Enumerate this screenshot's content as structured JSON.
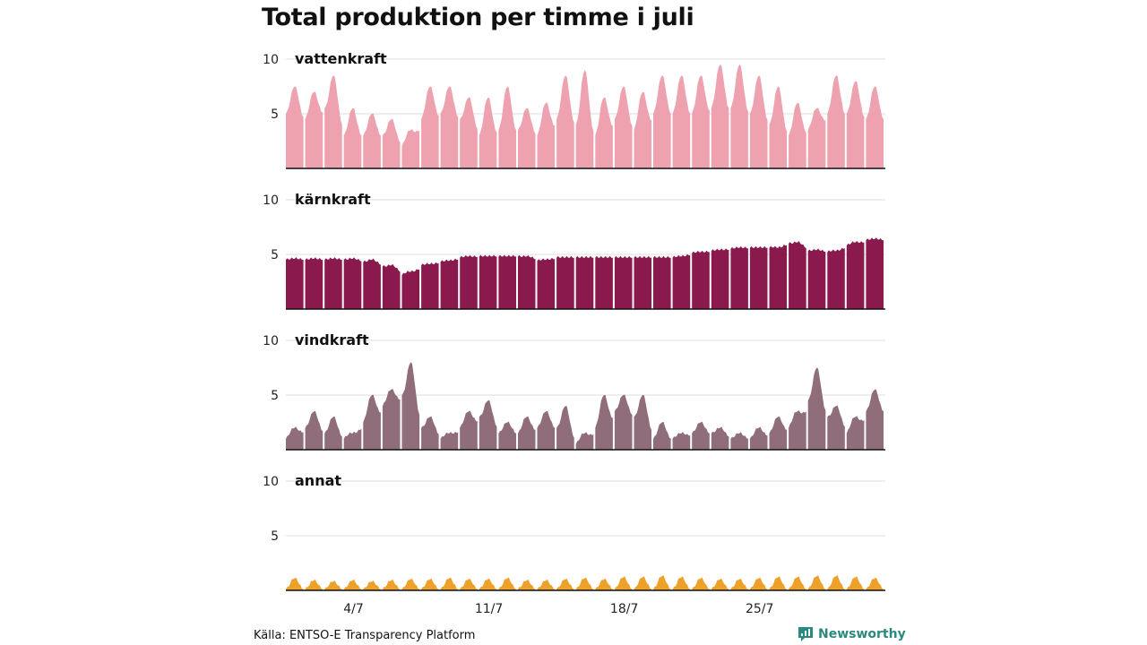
{
  "title": "Total produktion per timme i juli",
  "source": "Källa: ENTSO-E Transparency Platform",
  "brand": "Newsworthy",
  "chart_data": {
    "type": "area",
    "title": "Total produktion per timme i juli",
    "x_unit": "day of July (daily values, hourly detail approximated)",
    "ylim": [
      0,
      10
    ],
    "yticks": [
      5,
      10
    ],
    "grid": true,
    "x_tick_labels": [
      {
        "day": 4,
        "label": "4/7"
      },
      {
        "day": 11,
        "label": "11/7"
      },
      {
        "day": 18,
        "label": "18/7"
      },
      {
        "day": 25,
        "label": "25/7"
      }
    ],
    "series": [
      {
        "name": "vattenkraft",
        "color": "#eea1ae",
        "daily": [
          {
            "day": 1,
            "lo": 5.0,
            "hi": 7.5
          },
          {
            "day": 2,
            "lo": 4.5,
            "hi": 7.0
          },
          {
            "day": 3,
            "lo": 5.5,
            "hi": 8.5
          },
          {
            "day": 4,
            "lo": 3.0,
            "hi": 5.5
          },
          {
            "day": 5,
            "lo": 3.0,
            "hi": 5.0
          },
          {
            "day": 6,
            "lo": 3.0,
            "hi": 4.5
          },
          {
            "day": 7,
            "lo": 2.0,
            "hi": 3.5
          },
          {
            "day": 8,
            "lo": 4.5,
            "hi": 7.5
          },
          {
            "day": 9,
            "lo": 5.0,
            "hi": 7.5
          },
          {
            "day": 10,
            "lo": 4.5,
            "hi": 6.5
          },
          {
            "day": 11,
            "lo": 3.0,
            "hi": 6.5
          },
          {
            "day": 12,
            "lo": 3.5,
            "hi": 7.5
          },
          {
            "day": 13,
            "lo": 3.5,
            "hi": 5.5
          },
          {
            "day": 14,
            "lo": 3.0,
            "hi": 6.0
          },
          {
            "day": 15,
            "lo": 4.5,
            "hi": 8.5
          },
          {
            "day": 16,
            "lo": 4.0,
            "hi": 9.0
          },
          {
            "day": 17,
            "lo": 3.0,
            "hi": 6.5
          },
          {
            "day": 18,
            "lo": 4.5,
            "hi": 7.5
          },
          {
            "day": 19,
            "lo": 3.5,
            "hi": 7.0
          },
          {
            "day": 20,
            "lo": 5.0,
            "hi": 8.5
          },
          {
            "day": 21,
            "lo": 5.0,
            "hi": 8.5
          },
          {
            "day": 22,
            "lo": 5.0,
            "hi": 8.5
          },
          {
            "day": 23,
            "lo": 5.5,
            "hi": 9.5
          },
          {
            "day": 24,
            "lo": 5.5,
            "hi": 9.5
          },
          {
            "day": 25,
            "lo": 5.0,
            "hi": 8.5
          },
          {
            "day": 26,
            "lo": 4.0,
            "hi": 7.5
          },
          {
            "day": 27,
            "lo": 3.0,
            "hi": 6.0
          },
          {
            "day": 28,
            "lo": 3.5,
            "hi": 5.5
          },
          {
            "day": 29,
            "lo": 5.0,
            "hi": 8.5
          },
          {
            "day": 30,
            "lo": 5.0,
            "hi": 8.0
          },
          {
            "day": 31,
            "lo": 4.5,
            "hi": 7.5
          }
        ]
      },
      {
        "name": "kärnkraft",
        "color": "#8a1a4e",
        "daily": [
          {
            "day": 1,
            "lo": 4.5,
            "hi": 4.6
          },
          {
            "day": 2,
            "lo": 4.5,
            "hi": 4.6
          },
          {
            "day": 3,
            "lo": 4.5,
            "hi": 4.6
          },
          {
            "day": 4,
            "lo": 4.5,
            "hi": 4.6
          },
          {
            "day": 5,
            "lo": 4.3,
            "hi": 4.5
          },
          {
            "day": 6,
            "lo": 3.9,
            "hi": 4.0
          },
          {
            "day": 7,
            "lo": 3.1,
            "hi": 3.4
          },
          {
            "day": 8,
            "lo": 4.0,
            "hi": 4.1
          },
          {
            "day": 9,
            "lo": 4.3,
            "hi": 4.4
          },
          {
            "day": 10,
            "lo": 4.7,
            "hi": 4.8
          },
          {
            "day": 11,
            "lo": 4.8,
            "hi": 4.8
          },
          {
            "day": 12,
            "lo": 4.8,
            "hi": 4.8
          },
          {
            "day": 13,
            "lo": 4.8,
            "hi": 4.8
          },
          {
            "day": 14,
            "lo": 4.4,
            "hi": 4.5
          },
          {
            "day": 15,
            "lo": 4.7,
            "hi": 4.7
          },
          {
            "day": 16,
            "lo": 4.7,
            "hi": 4.7
          },
          {
            "day": 17,
            "lo": 4.7,
            "hi": 4.7
          },
          {
            "day": 18,
            "lo": 4.7,
            "hi": 4.7
          },
          {
            "day": 19,
            "lo": 4.7,
            "hi": 4.7
          },
          {
            "day": 20,
            "lo": 4.7,
            "hi": 4.7
          },
          {
            "day": 21,
            "lo": 4.7,
            "hi": 4.8
          },
          {
            "day": 22,
            "lo": 5.1,
            "hi": 5.2
          },
          {
            "day": 23,
            "lo": 5.3,
            "hi": 5.4
          },
          {
            "day": 24,
            "lo": 5.5,
            "hi": 5.6
          },
          {
            "day": 25,
            "lo": 5.6,
            "hi": 5.6
          },
          {
            "day": 26,
            "lo": 5.6,
            "hi": 5.6
          },
          {
            "day": 27,
            "lo": 6.0,
            "hi": 6.1
          },
          {
            "day": 28,
            "lo": 5.3,
            "hi": 5.4
          },
          {
            "day": 29,
            "lo": 5.2,
            "hi": 5.3
          },
          {
            "day": 30,
            "lo": 5.8,
            "hi": 6.1
          },
          {
            "day": 31,
            "lo": 6.3,
            "hi": 6.4
          }
        ]
      },
      {
        "name": "vindkraft",
        "color": "#8f6d7a",
        "daily": [
          {
            "day": 1,
            "lo": 1.0,
            "hi": 2.0
          },
          {
            "day": 2,
            "lo": 2.0,
            "hi": 3.5
          },
          {
            "day": 3,
            "lo": 1.5,
            "hi": 3.0
          },
          {
            "day": 4,
            "lo": 1.0,
            "hi": 1.5
          },
          {
            "day": 5,
            "lo": 2.5,
            "hi": 5.0
          },
          {
            "day": 6,
            "lo": 4.0,
            "hi": 5.5
          },
          {
            "day": 7,
            "lo": 5.0,
            "hi": 8.0
          },
          {
            "day": 8,
            "lo": 2.0,
            "hi": 3.0
          },
          {
            "day": 9,
            "lo": 1.0,
            "hi": 1.5
          },
          {
            "day": 10,
            "lo": 2.0,
            "hi": 3.5
          },
          {
            "day": 11,
            "lo": 3.0,
            "hi": 4.5
          },
          {
            "day": 12,
            "lo": 1.5,
            "hi": 2.5
          },
          {
            "day": 13,
            "lo": 1.5,
            "hi": 3.0
          },
          {
            "day": 14,
            "lo": 2.0,
            "hi": 3.5
          },
          {
            "day": 15,
            "lo": 2.0,
            "hi": 4.0
          },
          {
            "day": 16,
            "lo": 0.5,
            "hi": 1.5
          },
          {
            "day": 17,
            "lo": 2.0,
            "hi": 5.0
          },
          {
            "day": 18,
            "lo": 3.5,
            "hi": 5.0
          },
          {
            "day": 19,
            "lo": 3.0,
            "hi": 5.0
          },
          {
            "day": 20,
            "lo": 1.0,
            "hi": 2.5
          },
          {
            "day": 21,
            "lo": 1.0,
            "hi": 1.5
          },
          {
            "day": 22,
            "lo": 1.5,
            "hi": 2.5
          },
          {
            "day": 23,
            "lo": 1.5,
            "hi": 2.0
          },
          {
            "day": 24,
            "lo": 1.0,
            "hi": 1.5
          },
          {
            "day": 25,
            "lo": 1.0,
            "hi": 2.0
          },
          {
            "day": 26,
            "lo": 1.5,
            "hi": 3.0
          },
          {
            "day": 27,
            "lo": 2.0,
            "hi": 3.5
          },
          {
            "day": 28,
            "lo": 4.5,
            "hi": 7.5
          },
          {
            "day": 29,
            "lo": 3.0,
            "hi": 4.0
          },
          {
            "day": 30,
            "lo": 1.5,
            "hi": 3.0
          },
          {
            "day": 31,
            "lo": 3.5,
            "hi": 5.5
          }
        ]
      },
      {
        "name": "annat",
        "color": "#eea12a",
        "daily": [
          {
            "day": 1,
            "lo": 0.1,
            "hi": 1.1
          },
          {
            "day": 2,
            "lo": 0.1,
            "hi": 0.9
          },
          {
            "day": 3,
            "lo": 0.1,
            "hi": 0.8
          },
          {
            "day": 4,
            "lo": 0.1,
            "hi": 0.9
          },
          {
            "day": 5,
            "lo": 0.1,
            "hi": 0.8
          },
          {
            "day": 6,
            "lo": 0.1,
            "hi": 0.9
          },
          {
            "day": 7,
            "lo": 0.1,
            "hi": 1.0
          },
          {
            "day": 8,
            "lo": 0.1,
            "hi": 1.0
          },
          {
            "day": 9,
            "lo": 0.1,
            "hi": 1.1
          },
          {
            "day": 10,
            "lo": 0.1,
            "hi": 1.0
          },
          {
            "day": 11,
            "lo": 0.1,
            "hi": 1.0
          },
          {
            "day": 12,
            "lo": 0.1,
            "hi": 1.1
          },
          {
            "day": 13,
            "lo": 0.1,
            "hi": 0.9
          },
          {
            "day": 14,
            "lo": 0.1,
            "hi": 0.9
          },
          {
            "day": 15,
            "lo": 0.1,
            "hi": 1.0
          },
          {
            "day": 16,
            "lo": 0.1,
            "hi": 1.1
          },
          {
            "day": 17,
            "lo": 0.1,
            "hi": 1.0
          },
          {
            "day": 18,
            "lo": 0.1,
            "hi": 1.2
          },
          {
            "day": 19,
            "lo": 0.1,
            "hi": 1.2
          },
          {
            "day": 20,
            "lo": 0.1,
            "hi": 1.3
          },
          {
            "day": 21,
            "lo": 0.1,
            "hi": 1.2
          },
          {
            "day": 22,
            "lo": 0.1,
            "hi": 1.1
          },
          {
            "day": 23,
            "lo": 0.1,
            "hi": 1.0
          },
          {
            "day": 24,
            "lo": 0.1,
            "hi": 1.0
          },
          {
            "day": 25,
            "lo": 0.1,
            "hi": 1.1
          },
          {
            "day": 26,
            "lo": 0.1,
            "hi": 1.2
          },
          {
            "day": 27,
            "lo": 0.1,
            "hi": 1.2
          },
          {
            "day": 28,
            "lo": 0.1,
            "hi": 1.3
          },
          {
            "day": 29,
            "lo": 0.1,
            "hi": 1.3
          },
          {
            "day": 30,
            "lo": 0.1,
            "hi": 1.2
          },
          {
            "day": 31,
            "lo": 0.1,
            "hi": 1.1
          }
        ]
      }
    ]
  }
}
